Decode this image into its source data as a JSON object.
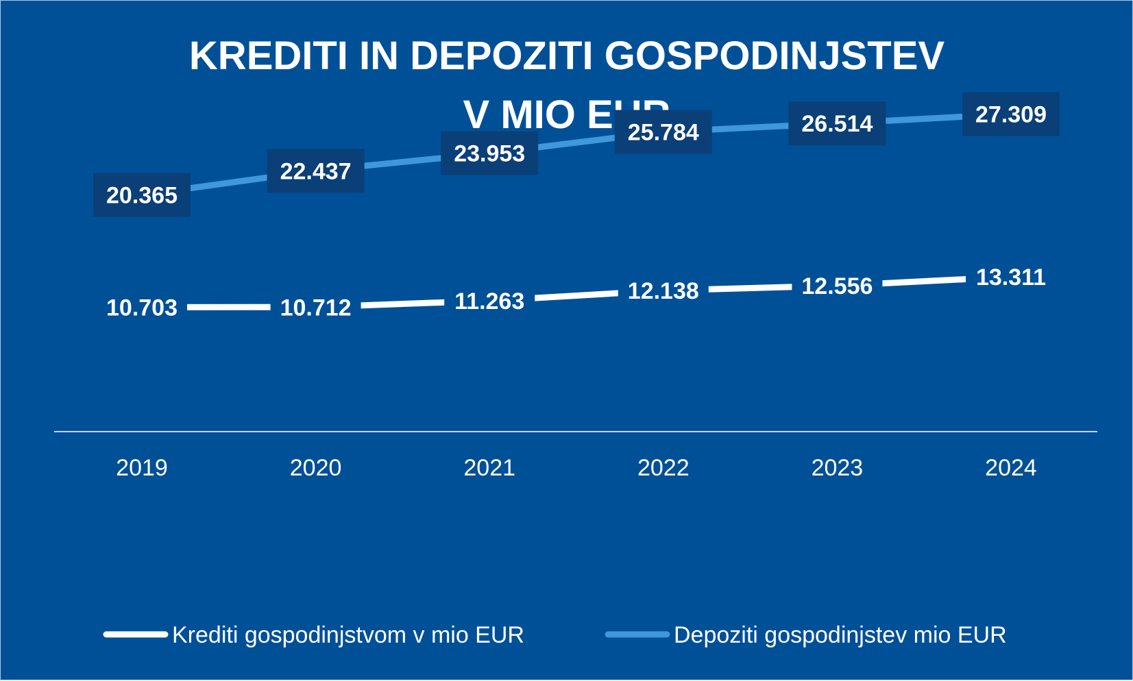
{
  "chart_data": {
    "type": "line",
    "title": "KREDITI IN DEPOZITI GOSPODINJSTEV",
    "subtitle": "V MIO EUR",
    "xlabel": "",
    "ylabel": "",
    "categories": [
      "2019",
      "2020",
      "2021",
      "2022",
      "2023",
      "2024"
    ],
    "ylim": [
      0,
      30000
    ],
    "grid": false,
    "legend_position": "bottom",
    "series": [
      {
        "name": "Krediti gospodinjstvom v mio EUR",
        "values": [
          10703,
          10712,
          11263,
          12138,
          12556,
          13311
        ],
        "labels": [
          "10.703",
          "10.712",
          "11.263",
          "12.138",
          "12.556",
          "13.311"
        ],
        "color": "#ffffff"
      },
      {
        "name": "Depoziti gospodinjstev mio EUR",
        "values": [
          20365,
          22437,
          23953,
          25784,
          26514,
          27309
        ],
        "labels": [
          "20.365",
          "22.437",
          "23.953",
          "25.784",
          "26.514",
          "27.309"
        ],
        "color": "#3f97dc"
      }
    ],
    "colors": {
      "background": "#005098",
      "label_box": "#0b3f78",
      "axis": "#c9d6ea"
    }
  }
}
